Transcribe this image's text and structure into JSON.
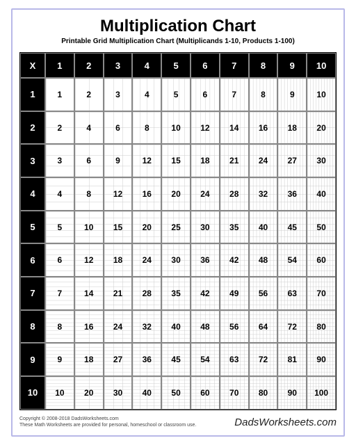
{
  "title": "Multiplication Chart",
  "subtitle": "Printable Grid Multiplication Chart (Multiplicands 1-10, Products 1-100)",
  "corner_label": "X",
  "columns": [
    "1",
    "2",
    "3",
    "4",
    "5",
    "6",
    "7",
    "8",
    "9",
    "10"
  ],
  "rows": [
    "1",
    "2",
    "3",
    "4",
    "5",
    "6",
    "7",
    "8",
    "9",
    "10"
  ],
  "cells": [
    [
      "1",
      "2",
      "3",
      "4",
      "5",
      "6",
      "7",
      "8",
      "9",
      "10"
    ],
    [
      "2",
      "4",
      "6",
      "8",
      "10",
      "12",
      "14",
      "16",
      "18",
      "20"
    ],
    [
      "3",
      "6",
      "9",
      "12",
      "15",
      "18",
      "21",
      "24",
      "27",
      "30"
    ],
    [
      "4",
      "8",
      "12",
      "16",
      "20",
      "24",
      "28",
      "32",
      "36",
      "40"
    ],
    [
      "5",
      "10",
      "15",
      "20",
      "25",
      "30",
      "35",
      "40",
      "45",
      "50"
    ],
    [
      "6",
      "12",
      "18",
      "24",
      "30",
      "36",
      "42",
      "48",
      "54",
      "60"
    ],
    [
      "7",
      "14",
      "21",
      "28",
      "35",
      "42",
      "49",
      "56",
      "63",
      "70"
    ],
    [
      "8",
      "16",
      "24",
      "32",
      "40",
      "48",
      "56",
      "64",
      "72",
      "80"
    ],
    [
      "9",
      "18",
      "27",
      "36",
      "45",
      "54",
      "63",
      "72",
      "81",
      "90"
    ],
    [
      "10",
      "20",
      "30",
      "40",
      "50",
      "60",
      "70",
      "80",
      "90",
      "100"
    ]
  ],
  "grid_density": [
    1,
    2,
    3,
    4,
    5,
    6,
    7,
    8,
    9,
    10
  ],
  "colors": {
    "page_border": "#b8b8e8",
    "header_bg": "#000000",
    "header_fg": "#ffffff",
    "cell_border": "#888888",
    "minigrid": "#cccccc",
    "text": "#000000"
  },
  "footer": {
    "copyright": "Copyright © 2008-2018 DadsWorksheets.com",
    "note": "These Math Worksheets are provided for personal, homeschool or classroom use.",
    "brand": "DadsWorksheets.com"
  }
}
